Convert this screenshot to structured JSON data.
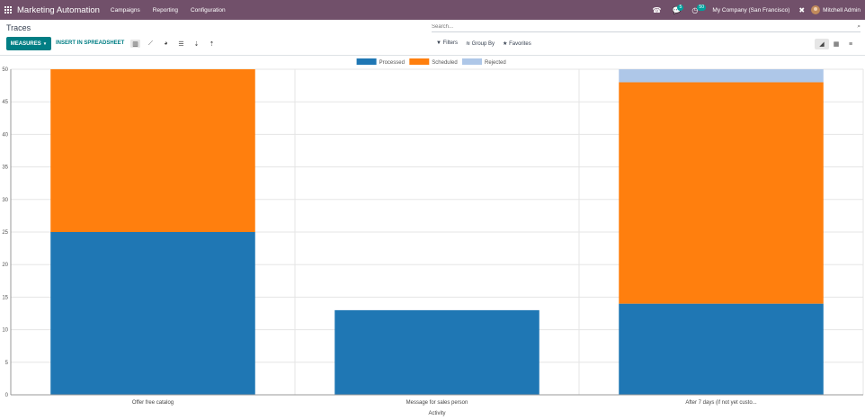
{
  "navbar": {
    "brand": "Marketing Automation",
    "menus": [
      "Campaigns",
      "Reporting",
      "Configuration"
    ],
    "messages_count": "5",
    "activities_count": "50",
    "company": "My Company (San Francisco)",
    "user": "Mitchell Admin"
  },
  "control_panel": {
    "breadcrumb": "Traces",
    "search_placeholder": "Search...",
    "measures_label": "MEASURES",
    "spreadsheet_label": "INSERT IN SPREADSHEET",
    "filters_label": "Filters",
    "group_by_label": "Group By",
    "favorites_label": "Favorites"
  },
  "colors": {
    "navbar": "#71506a",
    "primary": "#017e84",
    "processed": "#1f77b4",
    "scheduled": "#ff7f0e",
    "rejected": "#aec7e8"
  },
  "chart_data": {
    "type": "bar",
    "stacked": true,
    "categories": [
      "Offer free catalog",
      "Message for sales person",
      "After 7 days (if not yet custo..."
    ],
    "series": [
      {
        "name": "Processed",
        "values": [
          25,
          13,
          14
        ],
        "color": "#1f77b4"
      },
      {
        "name": "Scheduled",
        "values": [
          25,
          0,
          34
        ],
        "color": "#ff7f0e"
      },
      {
        "name": "Rejected",
        "values": [
          0,
          0,
          2
        ],
        "color": "#aec7e8"
      }
    ],
    "xlabel": "Activity",
    "ylabel": "",
    "ylim": [
      0,
      50
    ],
    "yticks": [
      0,
      5,
      10,
      15,
      20,
      25,
      30,
      35,
      40,
      45,
      50
    ],
    "grid": true,
    "legend": "top-center"
  }
}
